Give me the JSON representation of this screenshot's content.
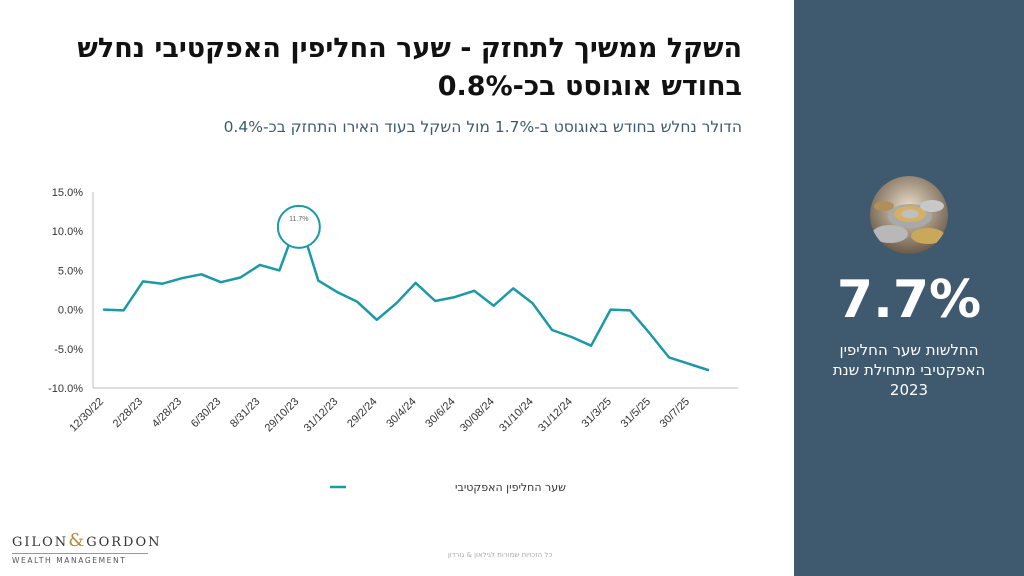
{
  "title": "השקל ממשיך לתחזק - שער החליפין האפקטיבי נחלש בחודש אוגוסט בכ-0.8%",
  "subtitle": "הדולר נחלש בחודש באוגוסט ב-1.7% מול השקל בעוד האירו התחזק בכ-0.4%",
  "sidebar": {
    "big_value": "7.7%",
    "caption": "החלשות שער החליפין האפקטיבי מתחילת שנת 2023",
    "image_icon": "coins-photo-icon"
  },
  "logo": {
    "main_left": "GILON",
    "amp": "&",
    "main_right": "GORDON",
    "sub": "WEALTH MANAGEMENT"
  },
  "footer": "כל הזכויות שמורות לגילאון & גורדון",
  "colors": {
    "line": "#1a99a9",
    "sidebar": "#3f596e"
  },
  "chart_data": {
    "type": "line",
    "ylim": [
      -10,
      15
    ],
    "y_ticks": [
      "15.0%",
      "10.0%",
      "5.0%",
      "0.0%",
      "-5.0%",
      "-10.0%"
    ],
    "y_tick_values": [
      15,
      10,
      5,
      0,
      -5,
      -10
    ],
    "x_tick_labels": [
      "12/30/22",
      "2/28/23",
      "4/28/23",
      "6/30/23",
      "8/31/23",
      "29/10/23",
      "31/12/23",
      "29/2/24",
      "30/4/24",
      "30/6/24",
      "30/08/24",
      "31/10/24",
      "31/12/24",
      "31/3/25",
      "31/5/25",
      "30/7/25"
    ],
    "series": [
      {
        "name": "שער החליפין האפקטיבי",
        "values": [
          0.0,
          -0.1,
          3.6,
          3.3,
          4.0,
          4.5,
          3.5,
          4.1,
          5.7,
          5.0,
          11.7,
          3.7,
          2.2,
          1.0,
          -1.3,
          0.8,
          3.4,
          1.1,
          1.6,
          2.4,
          0.5,
          2.7,
          0.8,
          -2.6,
          -3.5,
          -4.6,
          0.0,
          -0.1,
          -3.0,
          -6.1,
          -6.9,
          -7.7
        ]
      }
    ],
    "annotation": {
      "label": "11.7%",
      "point_index": 10
    },
    "legend_position": "bottom-center"
  }
}
